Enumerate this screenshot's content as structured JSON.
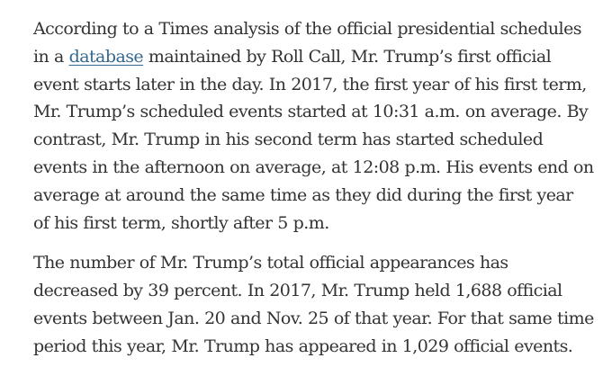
{
  "article": {
    "paragraph_1": {
      "line_1": "According to a Times analysis of the official presidential schedules",
      "line_2_before": "in a ",
      "line_2_link": "database",
      "line_2_after": " maintained by Roll Call, Mr. Trump’s first official",
      "line_3": "event starts later in the day. In 2017, the first year of his first term,",
      "line_4": "Mr. Trump’s scheduled events started at 10:31 a.m. on average. By",
      "line_5": "contrast, Mr. Trump in his second term has started scheduled",
      "line_6": "events in the afternoon on average, at 12:08 p.m. His events end on",
      "line_7": "average at around the same time as they did during the first year",
      "line_8": "of his first term, shortly after 5 p.m."
    },
    "paragraph_2": {
      "line_1": "The number of Mr. Trump’s total official appearances has",
      "line_2": "decreased by 39 percent. In 2017, Mr. Trump held 1,688 official",
      "line_3": "events between Jan. 20 and Nov. 25 of that year. For that same time",
      "line_4": "period this year, Mr. Trump has appeared in 1,029 official events."
    },
    "colors": {
      "text": "#333333",
      "link": "#326891",
      "background": "#ffffff"
    }
  }
}
